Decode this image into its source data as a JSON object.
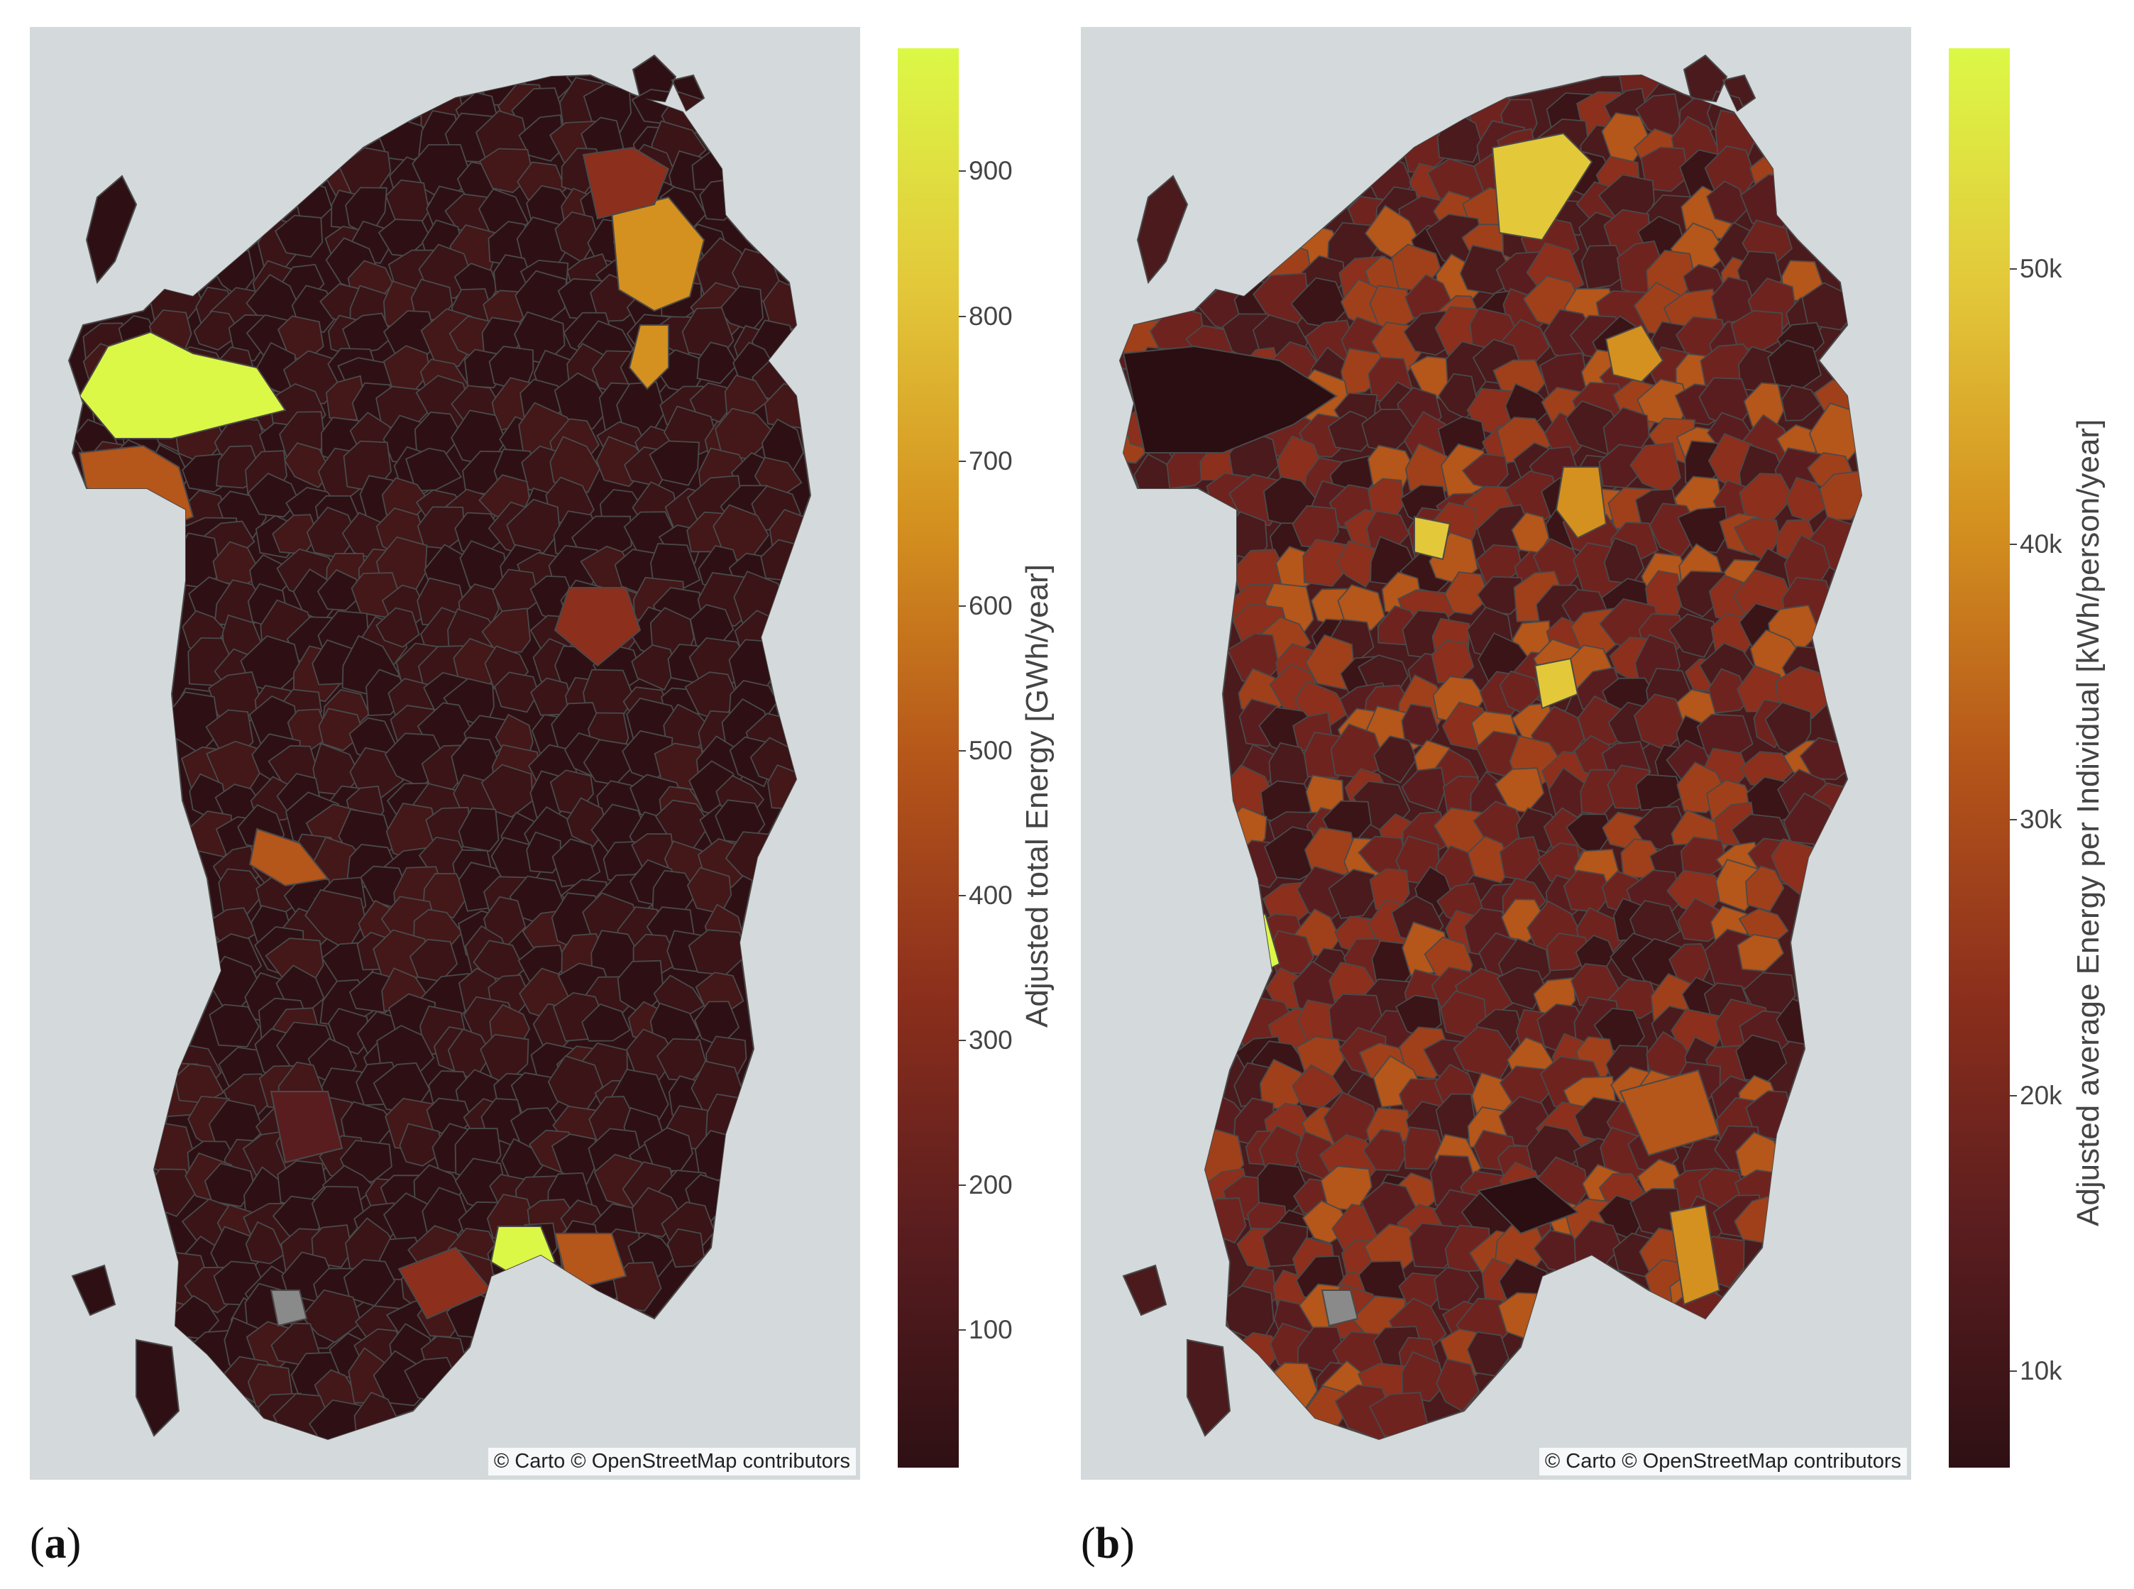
{
  "colors": {
    "sea": "#d4d9db",
    "border": "#4a4a4a",
    "missing": "#8a8a8a",
    "scale": [
      "#2e1014",
      "#5a1d1f",
      "#8c2f1c",
      "#b5561a",
      "#d4911f",
      "#e3c83a",
      "#dcf846"
    ]
  },
  "panels": [
    {
      "label_text": "a",
      "attribution": "© Carto © OpenStreetMap contributors",
      "colorbar": {
        "title": "Adjusted total Energy [GWh/year]",
        "min": 5,
        "max": 985,
        "ticks": [
          {
            "value": 100,
            "label": "100"
          },
          {
            "value": 200,
            "label": "200"
          },
          {
            "value": 300,
            "label": "300"
          },
          {
            "value": 400,
            "label": "400"
          },
          {
            "value": 500,
            "label": "500"
          },
          {
            "value": 600,
            "label": "600"
          },
          {
            "value": 700,
            "label": "700"
          },
          {
            "value": 800,
            "label": "800"
          },
          {
            "value": 900,
            "label": "900"
          }
        ]
      }
    },
    {
      "label_text": "b",
      "attribution": "© Carto © OpenStreetMap contributors",
      "colorbar": {
        "title": "Adjusted average Energy per Individual [kWh/person/year]",
        "min": 6500,
        "max": 58000,
        "ticks": [
          {
            "value": 10000,
            "label": "10k"
          },
          {
            "value": 20000,
            "label": "20k"
          },
          {
            "value": 30000,
            "label": "30k"
          },
          {
            "value": 40000,
            "label": "40k"
          },
          {
            "value": 50000,
            "label": "50k"
          }
        ]
      }
    }
  ]
}
